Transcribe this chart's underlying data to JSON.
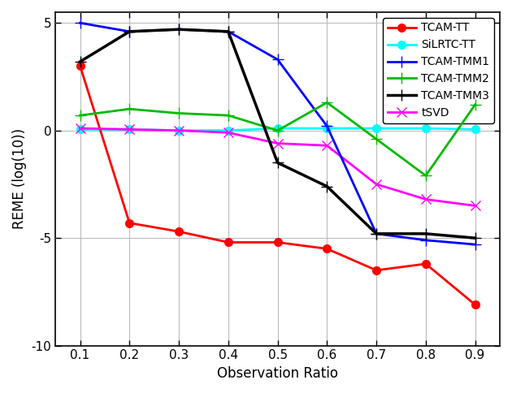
{
  "x": [
    0.1,
    0.2,
    0.3,
    0.4,
    0.5,
    0.6,
    0.7,
    0.8,
    0.9
  ],
  "series": [
    {
      "name": "TCAM-TT",
      "y": [
        3.0,
        -4.3,
        -4.7,
        -5.2,
        -5.2,
        -5.5,
        -6.5,
        -6.2,
        -8.1
      ],
      "color": "#ff0000",
      "marker": "o",
      "linewidth": 2.0,
      "markersize": 7,
      "zorder": 5
    },
    {
      "name": "SiLRTC-TT",
      "y": [
        0.05,
        0.05,
        0.0,
        0.0,
        0.1,
        0.1,
        0.1,
        0.1,
        0.05
      ],
      "color": "#00ffff",
      "marker": "o",
      "linewidth": 2.0,
      "markersize": 7,
      "zorder": 4
    },
    {
      "name": "TCAM-TMM1",
      "y": [
        5.0,
        4.6,
        4.7,
        4.6,
        3.3,
        0.2,
        -4.8,
        -5.1,
        -5.3
      ],
      "color": "#0000ff",
      "marker": "+",
      "linewidth": 2.0,
      "markersize": 10,
      "zorder": 6
    },
    {
      "name": "TCAM-TMM2",
      "y": [
        0.7,
        1.0,
        0.8,
        0.7,
        0.0,
        1.3,
        -0.4,
        -2.1,
        1.2
      ],
      "color": "#00bb00",
      "marker": "+",
      "linewidth": 2.0,
      "markersize": 10,
      "zorder": 6
    },
    {
      "name": "TCAM-TMM3",
      "y": [
        3.2,
        4.6,
        4.7,
        4.6,
        -1.5,
        -2.6,
        -4.8,
        -4.8,
        -5.0
      ],
      "color": "#000000",
      "marker": "+",
      "linewidth": 2.5,
      "markersize": 10,
      "zorder": 7
    },
    {
      "name": "tSVD",
      "y": [
        0.1,
        0.05,
        0.0,
        -0.1,
        -0.6,
        -0.7,
        -2.5,
        -3.2,
        -3.5
      ],
      "color": "#ff00ff",
      "marker": "x",
      "linewidth": 2.0,
      "markersize": 8,
      "zorder": 5
    }
  ],
  "xlabel": "Observation Ratio",
  "ylabel": "REME (log(10))",
  "xlim": [
    0.05,
    0.95
  ],
  "ylim": [
    -10,
    5.5
  ],
  "yticks": [
    -10,
    -5,
    0,
    5
  ],
  "xticks": [
    0.1,
    0.2,
    0.3,
    0.4,
    0.5,
    0.6,
    0.7,
    0.8,
    0.9
  ],
  "grid": true,
  "legend_loc": "upper right",
  "figsize": [
    6.3,
    4.84
  ],
  "dpi": 100
}
